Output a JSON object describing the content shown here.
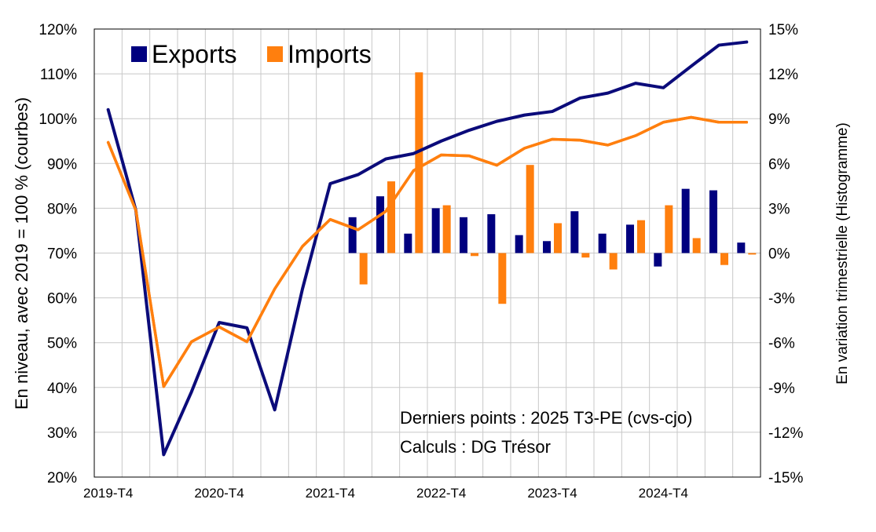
{
  "chart_data": {
    "type": "bar+line",
    "categories": [
      "2019-T4",
      "2020-T1",
      "2020-T2",
      "2020-T3",
      "2020-T4",
      "2021-T1",
      "2021-T2",
      "2021-T3",
      "2021-T4",
      "2022-T1",
      "2022-T2",
      "2022-T3",
      "2022-T4",
      "2023-T1",
      "2023-T2",
      "2023-T3",
      "2023-T4",
      "2024-T1",
      "2024-T2",
      "2024-T3",
      "2024-T4",
      "2025-T1",
      "2025-T2",
      "2025-T3"
    ],
    "x_tick_labels": [
      "2019-T4",
      "2020-T4",
      "2021-T4",
      "2022-T4",
      "2023-T4",
      "2024-T4"
    ],
    "lines": [
      {
        "name": "Exports",
        "color": "#0b0b7a",
        "axis": "left",
        "values": [
          102,
          79.5,
          25,
          39,
          54.5,
          53.3,
          35,
          62,
          85.5,
          87.5,
          91,
          92.2,
          95,
          97.4,
          99.4,
          100.8,
          101.6,
          104.6,
          105.7,
          107.9,
          106.9,
          111.7,
          116.4,
          117.1
        ]
      },
      {
        "name": "Imports",
        "color": "#ff7f0e",
        "axis": "left",
        "values": [
          94.7,
          79.5,
          40.2,
          50.2,
          53.5,
          50.2,
          62,
          71.5,
          77.5,
          75.2,
          79.3,
          88.4,
          91.9,
          91.7,
          89.6,
          93.4,
          95.4,
          95.2,
          94.1,
          96.2,
          99.2,
          100.3,
          99.2,
          99.2
        ]
      },
      {
        "name": "Imports",
        "color": "#ff7f0e",
        "axis": "left",
        "values": [
          94.7,
          79.5,
          40.2,
          50.2,
          53.5,
          50.2,
          62,
          71.5,
          77.5,
          75.2,
          79.3,
          88.4,
          91.9,
          91.7,
          89.6,
          93.4,
          95.4,
          95.2,
          94.1,
          96.2,
          99.2,
          100.3,
          99.2,
          99.2
        ]
      }
    ],
    "bars": [
      {
        "name": "Exports",
        "color": "#00007f",
        "axis": "right",
        "values": [
          null,
          null,
          null,
          null,
          null,
          null,
          null,
          null,
          null,
          2.4,
          3.8,
          1.3,
          3.0,
          2.4,
          2.6,
          1.2,
          0.8,
          2.8,
          1.3,
          1.9,
          -0.9,
          4.3,
          4.2,
          0.7
        ]
      },
      {
        "name": "Imports",
        "color": "#ff7f0e",
        "axis": "right",
        "values": [
          null,
          null,
          null,
          null,
          null,
          null,
          null,
          null,
          null,
          -2.1,
          4.8,
          12.1,
          3.2,
          -0.2,
          -3.4,
          5.9,
          2.0,
          -0.3,
          -1.1,
          2.2,
          3.2,
          1.0,
          -0.8,
          -0.1
        ]
      }
    ],
    "left_axis": {
      "label": "En niveau, avec 2019 = 100 % (courbes)",
      "min": 20,
      "max": 120,
      "step": 10,
      "ticks": [
        "20%",
        "30%",
        "40%",
        "50%",
        "60%",
        "70%",
        "80%",
        "90%",
        "100%",
        "110%",
        "120%"
      ]
    },
    "right_axis": {
      "label": "En variation trimestrielle  (Histogramme)",
      "min": -15,
      "max": 15,
      "step": 3,
      "ticks": [
        "-15%",
        "-12%",
        "-9%",
        "-6%",
        "-3%",
        "0%",
        "3%",
        "6%",
        "9%",
        "12%",
        "15%"
      ]
    },
    "legend": [
      {
        "label": "Exports",
        "color": "#00007f"
      },
      {
        "label": "Imports",
        "color": "#ff7f0e"
      }
    ],
    "legend_position": "top-left",
    "annotations": [
      "Derniers points : 2025 T3-PE (cvs-cjo)",
      "Calculs : DG Trésor"
    ],
    "grid": true
  }
}
